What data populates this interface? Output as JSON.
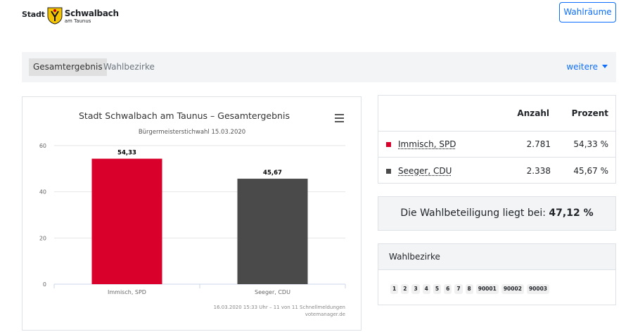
{
  "header": {
    "logo_stadt": "Stadt",
    "logo_name": "Schwalbach",
    "logo_sub": "am Taunus",
    "crest_icon": "coat-of-arms-icon",
    "wahlraeume_label": "Wahlräume"
  },
  "nav": {
    "tab_active": "Gesamtergebnis",
    "tab_inactive": "Wahlbezirke",
    "more_label": "weitere"
  },
  "chart_data": {
    "type": "bar",
    "title": "Stadt Schwalbach am Taunus – Gesamtergebnis",
    "subtitle": "Bürgermeisterstichwahl 15.03.2020",
    "categories": [
      "Immisch, SPD",
      "Seeger, CDU"
    ],
    "values": [
      54.33,
      45.67
    ],
    "value_labels": [
      "54,33",
      "45,67"
    ],
    "colors": [
      "#d9002b",
      "#4a4a4a"
    ],
    "ylim": [
      0,
      60
    ],
    "yticks": [
      0,
      20,
      40,
      60
    ],
    "grid": true,
    "credits_line1": "16.03.2020 15:33 Uhr – 11 von 11 Schnellmeldungen",
    "credits_line2": "votemanager.de",
    "menu_icon": "hamburger-menu-icon"
  },
  "results": {
    "col_anzahl": "Anzahl",
    "col_prozent": "Prozent",
    "rows": [
      {
        "name": "Immisch, SPD",
        "anzahl": "2.781",
        "prozent": "54,33 %",
        "color": "#d9002b"
      },
      {
        "name": "Seeger, CDU",
        "anzahl": "2.338",
        "prozent": "45,67 %",
        "color": "#4a4a4a"
      }
    ]
  },
  "turnout": {
    "label": "Die Wahlbeteiligung liegt bei: ",
    "value": "47,12 %"
  },
  "bezirke": {
    "heading": "Wahlbezirke",
    "items": [
      "1",
      "2",
      "3",
      "4",
      "5",
      "6",
      "7",
      "8",
      "90001",
      "90002",
      "90003"
    ]
  }
}
